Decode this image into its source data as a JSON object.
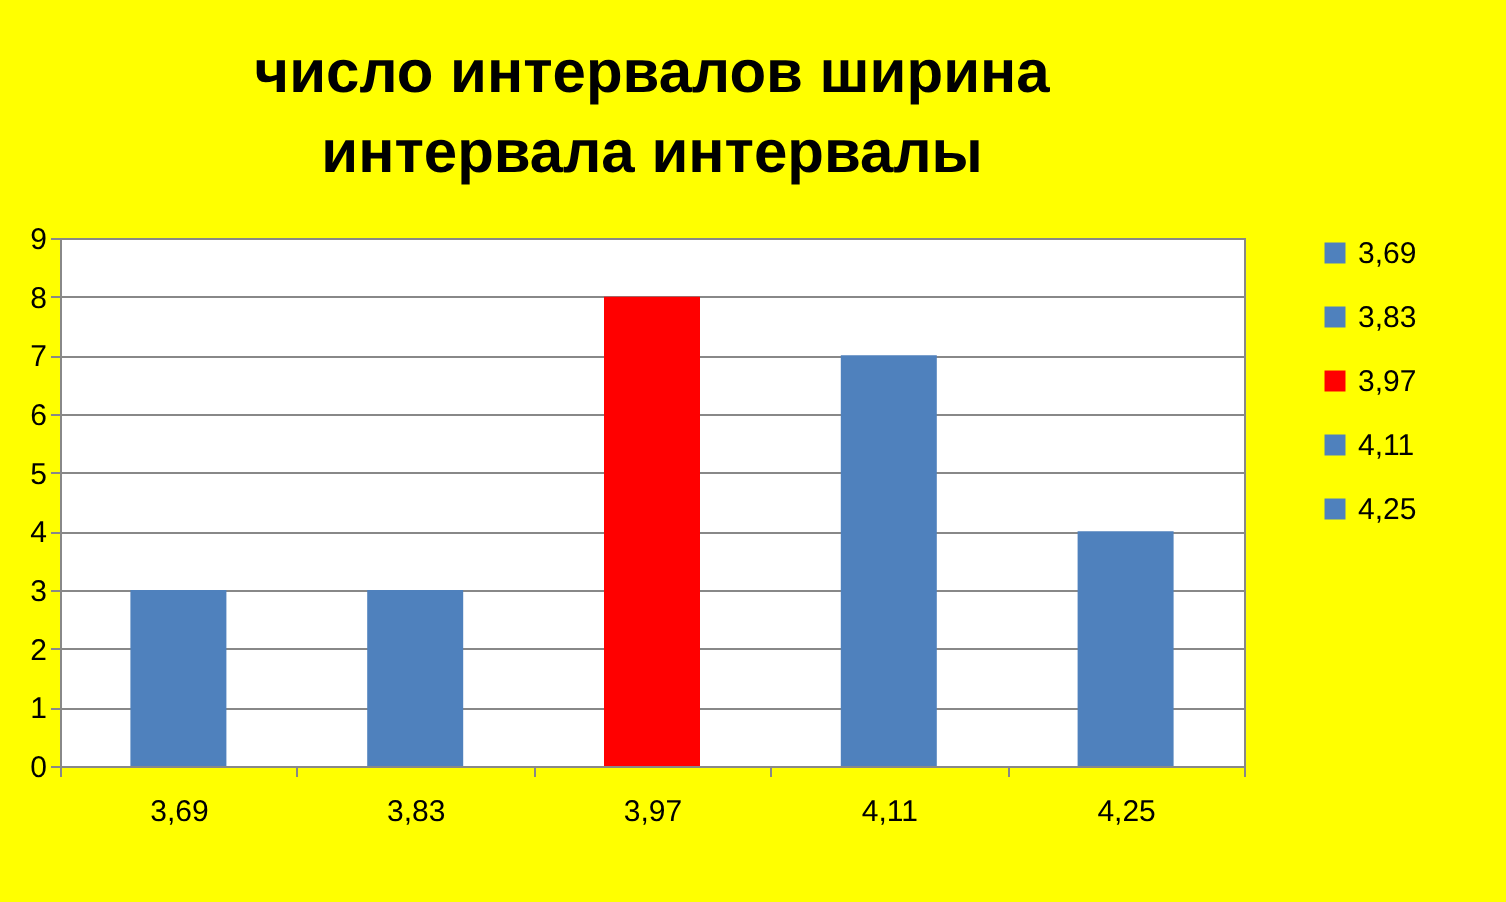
{
  "chart_data": {
    "type": "bar",
    "title": "число интервалов ширина\nинтервала  интервалы",
    "categories": [
      "3,69",
      "3,83",
      "3,97",
      "4,11",
      "4,25"
    ],
    "series": [
      {
        "name": "3,69",
        "color": "#4f81bd",
        "values": [
          3,
          null,
          null,
          null,
          null
        ]
      },
      {
        "name": "3,83",
        "color": "#4f81bd",
        "values": [
          null,
          3,
          null,
          null,
          null
        ]
      },
      {
        "name": "3,97",
        "color": "#ff0000",
        "values": [
          null,
          null,
          8,
          null,
          null
        ]
      },
      {
        "name": "4,11",
        "color": "#4f81bd",
        "values": [
          null,
          null,
          null,
          7,
          null
        ]
      },
      {
        "name": "4,25",
        "color": "#4f81bd",
        "values": [
          null,
          null,
          null,
          null,
          4
        ]
      }
    ],
    "ylim": [
      0,
      9
    ],
    "yticks": [
      0,
      1,
      2,
      3,
      4,
      5,
      6,
      7,
      8,
      9
    ],
    "grid": "y",
    "legend": "right"
  }
}
